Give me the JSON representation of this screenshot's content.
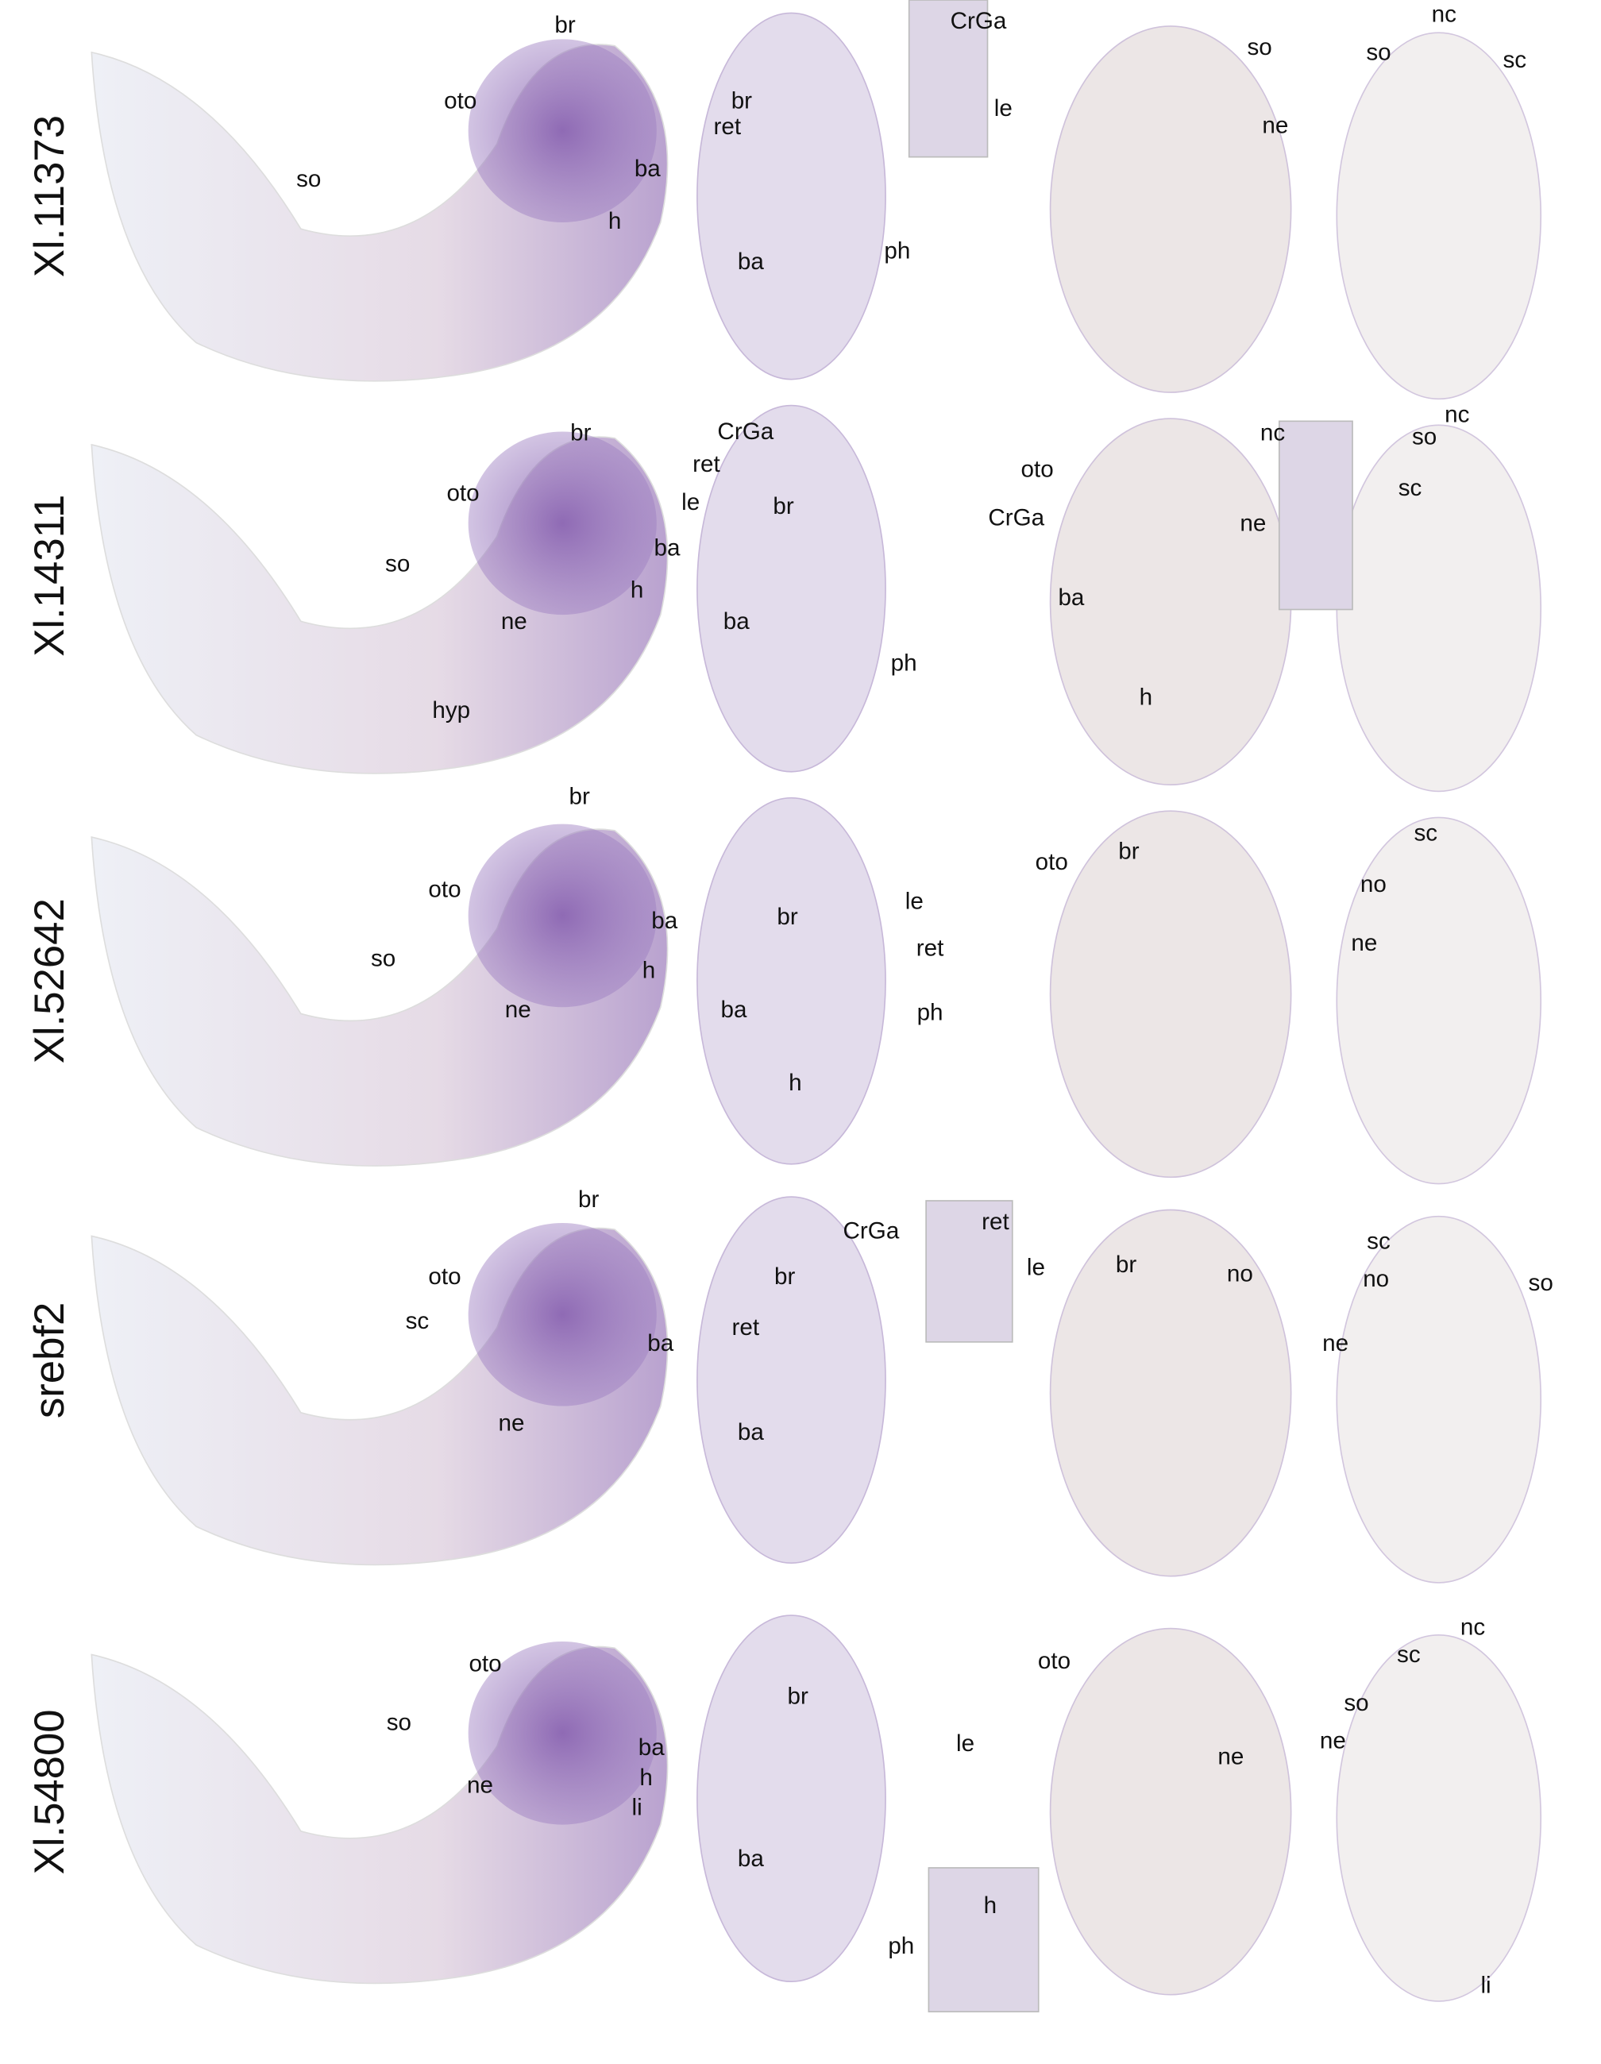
{
  "rows": [
    {
      "gene": "Xl.11373",
      "labels": [
        "br",
        "oto",
        "so",
        "ba",
        "h",
        "br",
        "ret",
        "ph",
        "ba",
        "CrGa",
        "le",
        "so",
        "ne",
        "nc",
        "so",
        "sc"
      ]
    },
    {
      "gene": "Xl.14311",
      "labels": [
        "br",
        "oto",
        "ba",
        "so",
        "h",
        "ne",
        "hyp",
        "CrGa",
        "ret",
        "le",
        "br",
        "ba",
        "ph",
        "oto",
        "CrGa",
        "ba",
        "h",
        "nc",
        "ne",
        "nc",
        "so",
        "sc"
      ]
    },
    {
      "gene": "Xl.52642",
      "labels": [
        "br",
        "oto",
        "ba",
        "so",
        "h",
        "ne",
        "le",
        "br",
        "ret",
        "ph",
        "ba",
        "h",
        "oto",
        "br",
        "sc",
        "no",
        "ne"
      ]
    },
    {
      "gene": "srebf2",
      "labels": [
        "br",
        "oto",
        "sc",
        "ba",
        "ne",
        "CrGa",
        "br",
        "ret",
        "ba",
        "ret",
        "le",
        "br",
        "no",
        "sc",
        "no",
        "so",
        "ne"
      ]
    },
    {
      "gene": "Xl.54800",
      "labels": [
        "oto",
        "so",
        "ba",
        "ne",
        "h",
        "li",
        "br",
        "le",
        "ba",
        "ph",
        "h",
        "oto",
        "ne",
        "nc",
        "sc",
        "so",
        "ne",
        "li"
      ]
    }
  ]
}
